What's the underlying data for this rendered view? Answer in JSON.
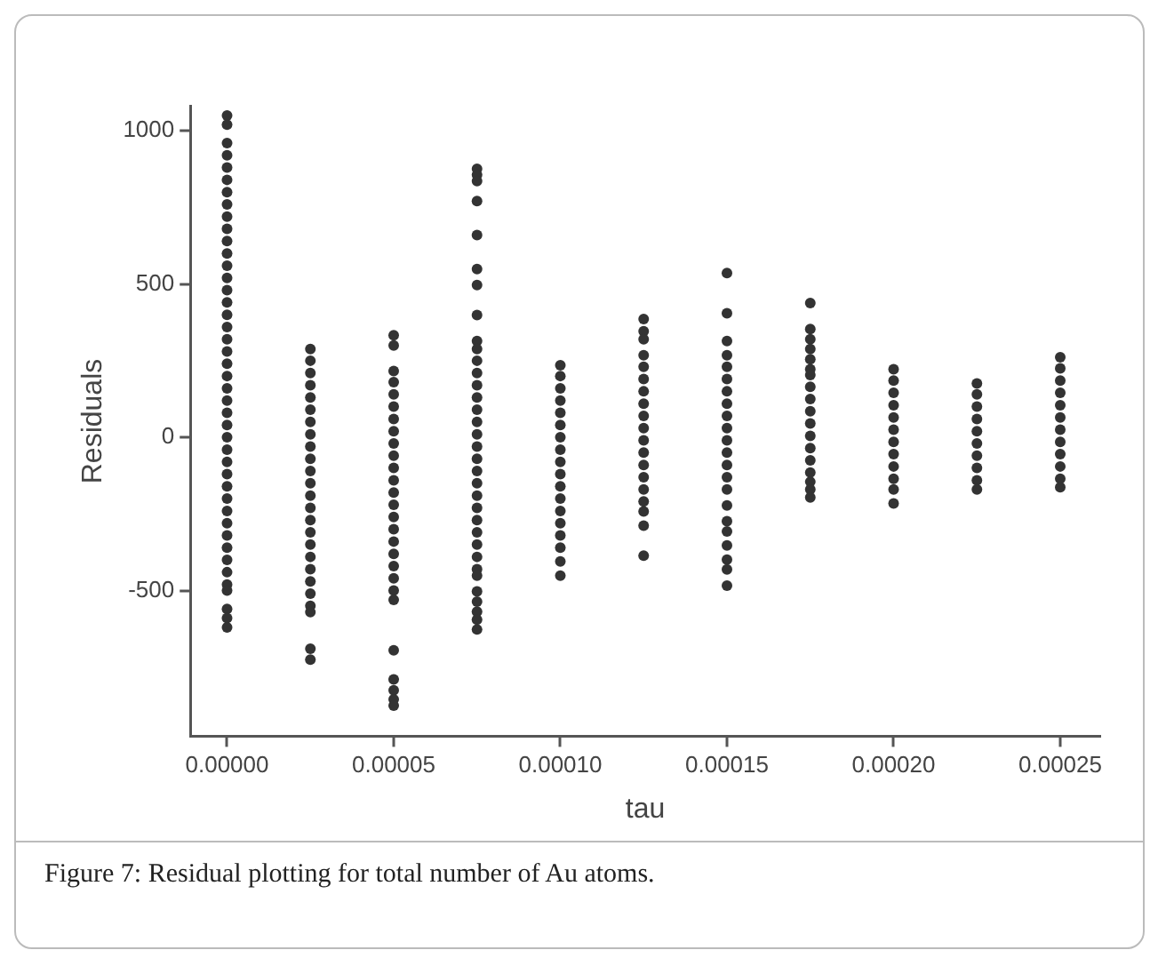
{
  "chart_data": {
    "type": "scatter",
    "xlabel": "tau",
    "ylabel": "Residuals",
    "annotations": [
      "Figure 7: Residual plotting for total number of Au atoms."
    ],
    "marker": "circle",
    "xlim": [
      -1.1e-05,
      0.000262
    ],
    "ylim": [
      -975,
      1080
    ],
    "xticks": [
      {
        "value": 0,
        "label": "0.00000"
      },
      {
        "value": 5e-05,
        "label": "0.00005"
      },
      {
        "value": 0.0001,
        "label": "0.00010"
      },
      {
        "value": 0.00015,
        "label": "0.00015"
      },
      {
        "value": 0.0002,
        "label": "0.00020"
      },
      {
        "value": 0.00025,
        "label": "0.00025"
      }
    ],
    "yticks": [
      -500,
      0,
      500,
      1000
    ],
    "series": [
      {
        "color": "#333333",
        "x": [
          0,
          0,
          0,
          0,
          0,
          0,
          0,
          0,
          0,
          0,
          0,
          0,
          0,
          0,
          0,
          0,
          0,
          0,
          0,
          0,
          0,
          0,
          0,
          0,
          0,
          0,
          0,
          0,
          0,
          0,
          0,
          0,
          0,
          0,
          0,
          0,
          0,
          0,
          0,
          0,
          0,
          0,
          0
        ],
        "values": [
          1050,
          1020,
          960,
          920,
          880,
          840,
          800,
          760,
          720,
          680,
          640,
          600,
          560,
          520,
          480,
          440,
          400,
          360,
          320,
          280,
          240,
          200,
          160,
          120,
          80,
          40,
          0,
          -40,
          -80,
          -120,
          -160,
          -200,
          -240,
          -280,
          -320,
          -360,
          -400,
          -440,
          -480,
          -500,
          -560,
          -590,
          -620
        ]
      },
      {
        "color": "#333333",
        "x": [
          2.5e-05,
          2.5e-05,
          2.5e-05,
          2.5e-05,
          2.5e-05,
          2.5e-05,
          2.5e-05,
          2.5e-05,
          2.5e-05,
          2.5e-05,
          2.5e-05,
          2.5e-05,
          2.5e-05,
          2.5e-05,
          2.5e-05,
          2.5e-05,
          2.5e-05,
          2.5e-05,
          2.5e-05,
          2.5e-05,
          2.5e-05,
          2.5e-05,
          2.5e-05,
          2.5e-05,
          2.5e-05
        ],
        "values": [
          288,
          250,
          210,
          170,
          130,
          90,
          50,
          10,
          -30,
          -70,
          -110,
          -150,
          -190,
          -230,
          -270,
          -310,
          -350,
          -390,
          -430,
          -470,
          -510,
          -550,
          -570,
          -690,
          -725
        ]
      },
      {
        "color": "#333333",
        "x": [
          5e-05,
          5e-05,
          5e-05,
          5e-05,
          5e-05,
          5e-05,
          5e-05,
          5e-05,
          5e-05,
          5e-05,
          5e-05,
          5e-05,
          5e-05,
          5e-05,
          5e-05,
          5e-05,
          5e-05,
          5e-05,
          5e-05,
          5e-05,
          5e-05,
          5e-05,
          5e-05,
          5e-05,
          5e-05,
          5e-05,
          5e-05
        ],
        "values": [
          333,
          300,
          216,
          180,
          140,
          100,
          60,
          20,
          -20,
          -60,
          -100,
          -140,
          -180,
          -220,
          -260,
          -300,
          -340,
          -380,
          -420,
          -460,
          -500,
          -530,
          -695,
          -790,
          -825,
          -855,
          -875
        ]
      },
      {
        "color": "#333333",
        "x": [
          7.5e-05,
          7.5e-05,
          7.5e-05,
          7.5e-05,
          7.5e-05,
          7.5e-05,
          7.5e-05,
          7.5e-05,
          7.5e-05,
          7.5e-05,
          7.5e-05,
          7.5e-05,
          7.5e-05,
          7.5e-05,
          7.5e-05,
          7.5e-05,
          7.5e-05,
          7.5e-05,
          7.5e-05,
          7.5e-05,
          7.5e-05,
          7.5e-05,
          7.5e-05,
          7.5e-05,
          7.5e-05,
          7.5e-05,
          7.5e-05,
          7.5e-05,
          7.5e-05,
          7.5e-05,
          7.5e-05,
          7.5e-05,
          7.5e-05,
          7.5e-05
        ],
        "values": [
          876,
          856,
          836,
          771,
          660,
          549,
          497,
          399,
          314,
          288,
          250,
          210,
          170,
          130,
          90,
          50,
          10,
          -30,
          -70,
          -110,
          -150,
          -190,
          -230,
          -270,
          -310,
          -350,
          -390,
          -430,
          -451,
          -503,
          -536,
          -569,
          -595,
          -627
        ]
      },
      {
        "color": "#333333",
        "x": [
          0.0001,
          0.0001,
          0.0001,
          0.0001,
          0.0001,
          0.0001,
          0.0001,
          0.0001,
          0.0001,
          0.0001,
          0.0001,
          0.0001,
          0.0001,
          0.0001,
          0.0001,
          0.0001,
          0.0001,
          0.0001
        ],
        "values": [
          235,
          200,
          160,
          120,
          80,
          40,
          0,
          -40,
          -80,
          -120,
          -160,
          -200,
          -240,
          -280,
          -320,
          -360,
          -405,
          -451
        ]
      },
      {
        "color": "#333333",
        "x": [
          0.000125,
          0.000125,
          0.000125,
          0.000125,
          0.000125,
          0.000125,
          0.000125,
          0.000125,
          0.000125,
          0.000125,
          0.000125,
          0.000125,
          0.000125,
          0.000125,
          0.000125,
          0.000125,
          0.000125,
          0.000125,
          0.000125
        ],
        "values": [
          386,
          346,
          320,
          268,
          230,
          190,
          150,
          110,
          70,
          30,
          -10,
          -50,
          -90,
          -130,
          -170,
          -209,
          -242,
          -288,
          -386
        ]
      },
      {
        "color": "#333333",
        "x": [
          0.00015,
          0.00015,
          0.00015,
          0.00015,
          0.00015,
          0.00015,
          0.00015,
          0.00015,
          0.00015,
          0.00015,
          0.00015,
          0.00015,
          0.00015,
          0.00015,
          0.00015,
          0.00015,
          0.00015,
          0.00015,
          0.00015,
          0.00015,
          0.00015,
          0.00015
        ],
        "values": [
          536,
          405,
          314,
          268,
          230,
          190,
          150,
          110,
          70,
          30,
          -10,
          -50,
          -90,
          -130,
          -170,
          -222,
          -274,
          -307,
          -353,
          -399,
          -431,
          -484
        ]
      },
      {
        "color": "#333333",
        "x": [
          0.000175,
          0.000175,
          0.000175,
          0.000175,
          0.000175,
          0.000175,
          0.000175,
          0.000175,
          0.000175,
          0.000175,
          0.000175,
          0.000175,
          0.000175,
          0.000175,
          0.000175,
          0.000175,
          0.000175,
          0.000175
        ],
        "values": [
          438,
          353,
          320,
          288,
          255,
          222,
          203,
          165,
          125,
          85,
          45,
          5,
          -35,
          -75,
          -115,
          -145,
          -170,
          -196
        ]
      },
      {
        "color": "#333333",
        "x": [
          0.0002,
          0.0002,
          0.0002,
          0.0002,
          0.0002,
          0.0002,
          0.0002,
          0.0002,
          0.0002,
          0.0002,
          0.0002,
          0.0002
        ],
        "values": [
          222,
          185,
          145,
          105,
          65,
          25,
          -15,
          -55,
          -95,
          -135,
          -170,
          -216
        ]
      },
      {
        "color": "#333333",
        "x": [
          0.000225,
          0.000225,
          0.000225,
          0.000225,
          0.000225,
          0.000225,
          0.000225,
          0.000225,
          0.000225,
          0.000225
        ],
        "values": [
          176,
          140,
          100,
          60,
          20,
          -20,
          -60,
          -100,
          -140,
          -170
        ]
      },
      {
        "color": "#333333",
        "x": [
          0.00025,
          0.00025,
          0.00025,
          0.00025,
          0.00025,
          0.00025,
          0.00025,
          0.00025,
          0.00025,
          0.00025,
          0.00025,
          0.00025
        ],
        "values": [
          261,
          225,
          185,
          145,
          105,
          65,
          25,
          -15,
          -55,
          -95,
          -135,
          -163
        ]
      }
    ]
  }
}
